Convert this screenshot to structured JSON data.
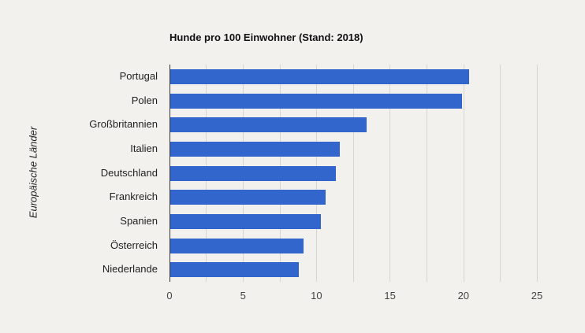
{
  "chart_data": {
    "type": "bar",
    "orientation": "horizontal",
    "title": "Hunde pro 100 Einwohner (Stand: 2018)",
    "xlabel": "",
    "ylabel": "Europäische Länder",
    "categories": [
      "Portugal",
      "Polen",
      "Großbritannien",
      "Italien",
      "Deutschland",
      "Frankreich",
      "Spanien",
      "Österreich",
      "Niederlande"
    ],
    "values": [
      20.4,
      19.9,
      13.4,
      11.6,
      11.3,
      10.6,
      10.3,
      9.1,
      8.8
    ],
    "xlim": [
      0,
      25
    ],
    "xticks": [
      0,
      5,
      10,
      15,
      20,
      25
    ],
    "grid": true,
    "bar_color": "#3366cc",
    "legend": null
  },
  "labels": {
    "title": "Hunde pro 100 Einwohner (Stand: 2018)",
    "ylabel": "Europäische Länder",
    "categories": [
      "Portugal",
      "Polen",
      "Großbritannien",
      "Italien",
      "Deutschland",
      "Frankreich",
      "Spanien",
      "Österreich",
      "Niederlande"
    ],
    "ticks": [
      "0",
      "5",
      "10",
      "15",
      "20",
      "25"
    ]
  }
}
